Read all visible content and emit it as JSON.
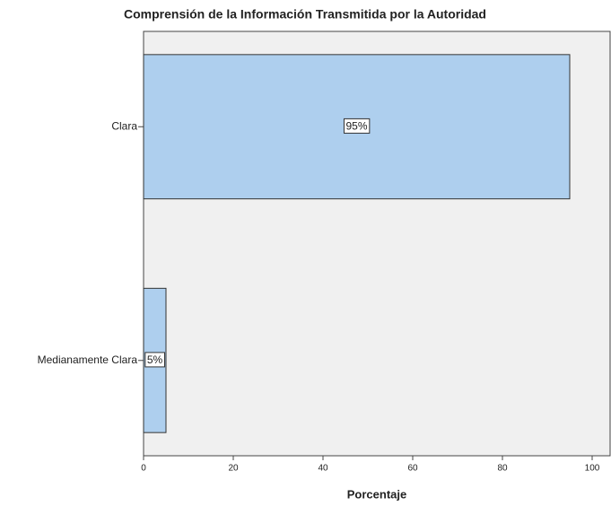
{
  "chart_data": {
    "type": "barh",
    "title": "Comprensión de la Información Transmitida por la Autoridad",
    "categories": [
      "Clara",
      "Medianamente Clara"
    ],
    "values": [
      95,
      5
    ],
    "value_labels": [
      "95%",
      "5%"
    ],
    "color": "#aecfee",
    "xlabel": "Porcentaje",
    "xlim": [
      0,
      104
    ],
    "xticks": [
      0,
      20,
      40,
      60,
      80,
      100
    ]
  }
}
